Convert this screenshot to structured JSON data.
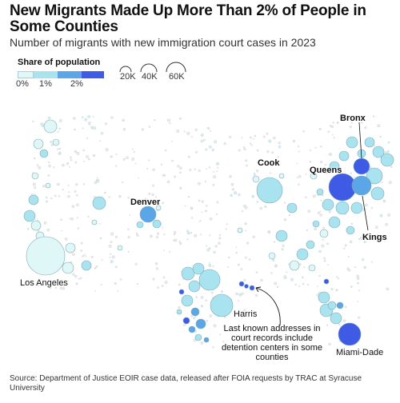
{
  "header": {
    "title": "New Migrants Made Up More Than 2% of People in Some Counties",
    "subtitle": "Number of migrants with new immigration court cases in 2023"
  },
  "legend": {
    "color_title": "Share of population",
    "color_ticks": [
      "0%",
      "1%",
      "2%"
    ],
    "colors": [
      "#dff7f7",
      "#a9e3f0",
      "#5aa6e6",
      "#3f5be6"
    ],
    "size_labels": [
      "20K",
      "40K",
      "60K"
    ]
  },
  "places": {
    "bronx": "Bronx",
    "cook": "Cook",
    "queens": "Queens",
    "denver": "Denver",
    "kings": "Kings",
    "los_angeles": "Los Angeles",
    "harris": "Harris",
    "miami_dade": "Miami-Dade"
  },
  "annotation": "Last known addresses in court records include detention centers in some counties",
  "source": "Source: Department of Justice EOIR case data, released after FOIA requests by TRAC at Syracuse University"
}
